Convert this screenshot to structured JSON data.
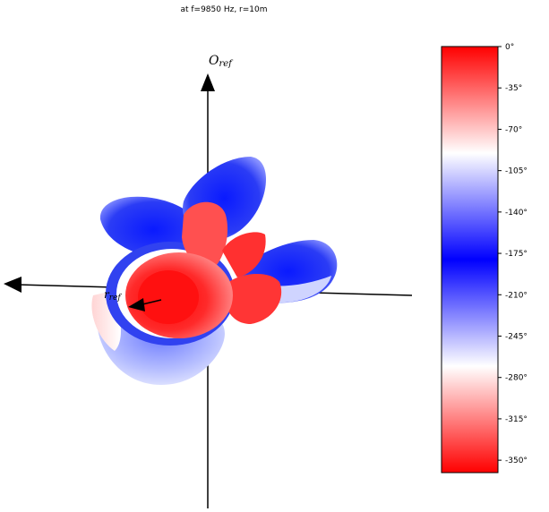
{
  "title": "at f=9850 Hz, r=10m",
  "axis_labels": {
    "up": "O",
    "up_sub": "ref",
    "side": "r",
    "side_sub": "ref"
  },
  "colorbar": {
    "colors": [
      "#ff0000",
      "#ffffff",
      "#0000ff",
      "#ffffff",
      "#ff0000"
    ],
    "ticks": [
      "0°",
      "-35°",
      "-70°",
      "-105°",
      "-140°",
      "-175°",
      "-210°",
      "-245°",
      "-280°",
      "-315°",
      "-350°"
    ]
  },
  "chart_data": {
    "type": "3d-surface",
    "description_values": {
      "frequency_hz": 9850,
      "radius_m": 10
    },
    "color_scale_range_deg": [
      -360,
      0
    ]
  }
}
